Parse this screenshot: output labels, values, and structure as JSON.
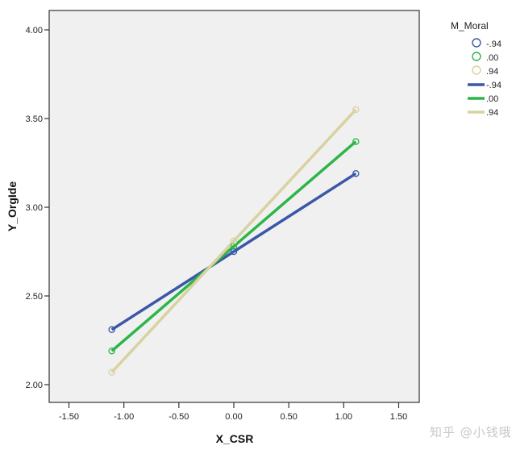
{
  "chart_data": {
    "type": "line",
    "title": "",
    "xlabel": "X_CSR",
    "ylabel": "Y_OrgIde",
    "xlim": [
      -1.65,
      1.65
    ],
    "ylim": [
      1.89,
      4.1
    ],
    "x_ticks": [
      -1.5,
      -1.0,
      -0.5,
      0.0,
      0.5,
      1.0,
      1.5
    ],
    "x_tick_labels": [
      "-1.50",
      "-1.00",
      "-0.50",
      "0.00",
      "0.50",
      "1.00",
      "1.50"
    ],
    "y_ticks": [
      2.0,
      2.5,
      3.0,
      3.5,
      4.0
    ],
    "y_tick_labels": [
      "2.00",
      "2.50",
      "3.00",
      "3.50",
      "4.00"
    ],
    "grid": false,
    "plot_background": "#f0f0f0",
    "legend_title": "M_Moral",
    "legend_position": "right",
    "x": [
      -1.11,
      0.0,
      1.11
    ],
    "series": [
      {
        "name": "-.94",
        "color": "#3b57a8",
        "values": [
          2.31,
          2.75,
          3.19
        ]
      },
      {
        "name": ".00",
        "color": "#2db54a",
        "values": [
          2.19,
          2.78,
          3.37
        ]
      },
      {
        "name": ".94",
        "color": "#d8d2a0",
        "values": [
          2.07,
          2.81,
          3.55
        ]
      }
    ],
    "legend_entries": [
      {
        "kind": "marker",
        "label": "-.94",
        "color": "#3b57a8"
      },
      {
        "kind": "marker",
        "label": ".00",
        "color": "#2db54a"
      },
      {
        "kind": "marker",
        "label": ".94",
        "color": "#d8d2a0"
      },
      {
        "kind": "line",
        "label": "-.94",
        "color": "#3b57a8"
      },
      {
        "kind": "line",
        "label": ".00",
        "color": "#2db54a"
      },
      {
        "kind": "line",
        "label": ".94",
        "color": "#d8d2a0"
      }
    ]
  },
  "watermark": "知乎 @小钱哦"
}
